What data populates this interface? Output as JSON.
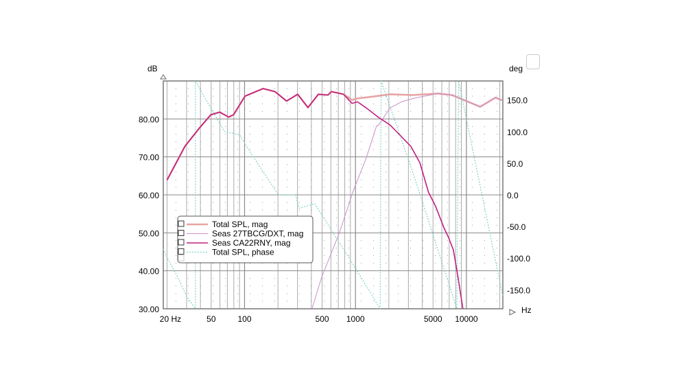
{
  "chart_data": {
    "type": "line",
    "title": "",
    "xlabel": "Hz",
    "ylabel": "dB",
    "y2label": "deg",
    "xscale": "log",
    "xlim": [
      18.5,
      21300
    ],
    "ylim": [
      30,
      90
    ],
    "y2lim": [
      -180,
      180
    ],
    "grid": true,
    "legend_placement": "left-center",
    "x_ticks": [
      {
        "value": 20,
        "label": "20 Hz"
      },
      {
        "value": 50,
        "label": "50"
      },
      {
        "value": 100,
        "label": "100"
      },
      {
        "value": 500,
        "label": "500"
      },
      {
        "value": 1000,
        "label": "1000"
      },
      {
        "value": 5000,
        "label": "5000"
      },
      {
        "value": 10000,
        "label": "10000"
      }
    ],
    "y_ticks": [
      {
        "value": 30,
        "label": "30.00"
      },
      {
        "value": 40,
        "label": "40.00"
      },
      {
        "value": 50,
        "label": "50.00"
      },
      {
        "value": 60,
        "label": "60.00"
      },
      {
        "value": 70,
        "label": "70.00"
      },
      {
        "value": 80,
        "label": "80.00"
      }
    ],
    "y2_ticks": [
      {
        "value": 150,
        "label": "150.0"
      },
      {
        "value": 100,
        "label": "100.0"
      },
      {
        "value": 50,
        "label": "50.0"
      },
      {
        "value": 0,
        "label": "0.0"
      },
      {
        "value": -50,
        "label": "-50.0"
      },
      {
        "value": -100,
        "label": "-100.0"
      },
      {
        "value": -150,
        "label": "-150.0"
      }
    ],
    "series": [
      {
        "name": "Total SPL, mag",
        "axis": "left",
        "color": "#e8a3a3",
        "style": "thick",
        "points": [
          [
            20,
            63.9
          ],
          [
            29,
            72.8
          ],
          [
            38.9,
            77.5
          ],
          [
            49.7,
            81.1
          ],
          [
            59.7,
            81.8
          ],
          [
            72,
            80.5
          ],
          [
            79.6,
            81.1
          ],
          [
            101,
            86
          ],
          [
            147,
            88
          ],
          [
            188,
            87.2
          ],
          [
            239,
            84.7
          ],
          [
            301,
            86.5
          ],
          [
            373,
            83
          ],
          [
            463,
            86.5
          ],
          [
            565,
            86.3
          ],
          [
            606,
            87.2
          ],
          [
            781,
            86.5
          ],
          [
            930,
            85
          ],
          [
            1040,
            85.4
          ],
          [
            1550,
            86
          ],
          [
            2050,
            86.5
          ],
          [
            3300,
            86.3
          ],
          [
            5550,
            86.7
          ],
          [
            7400,
            86.3
          ],
          [
            10000,
            84.7
          ],
          [
            13300,
            83.2
          ],
          [
            18300,
            85.6
          ],
          [
            21000,
            84.9
          ]
        ]
      },
      {
        "name": "Seas 27TBCG/DXT, mag",
        "axis": "left",
        "color": "#c98fc9",
        "style": "thin",
        "points": [
          [
            406,
            30
          ],
          [
            495,
            38.3
          ],
          [
            710,
            49.7
          ],
          [
            860,
            57
          ],
          [
            945,
            60.7
          ],
          [
            1250,
            69.7
          ],
          [
            1550,
            78.2
          ],
          [
            1600,
            78.2
          ],
          [
            2050,
            82.9
          ],
          [
            2600,
            84.5
          ],
          [
            3300,
            85.4
          ],
          [
            4200,
            86
          ],
          [
            5550,
            86.7
          ],
          [
            7400,
            86.3
          ],
          [
            10000,
            84.7
          ],
          [
            13300,
            83.2
          ],
          [
            18300,
            85.6
          ],
          [
            21000,
            84.9
          ]
        ]
      },
      {
        "name": "Seas CA22RNY, mag",
        "axis": "left",
        "color": "#c01f80",
        "style": "medium",
        "points": [
          [
            20,
            63.9
          ],
          [
            29,
            72.8
          ],
          [
            38.9,
            77.5
          ],
          [
            49.7,
            81.1
          ],
          [
            59.7,
            81.8
          ],
          [
            72,
            80.5
          ],
          [
            79.6,
            81.1
          ],
          [
            101,
            86
          ],
          [
            147,
            88
          ],
          [
            188,
            87.2
          ],
          [
            239,
            84.7
          ],
          [
            301,
            86.5
          ],
          [
            373,
            83
          ],
          [
            463,
            86.5
          ],
          [
            565,
            86.3
          ],
          [
            606,
            87.2
          ],
          [
            781,
            86.5
          ],
          [
            930,
            84.1
          ],
          [
            1040,
            84.5
          ],
          [
            1250,
            82.9
          ],
          [
            1600,
            80.5
          ],
          [
            2050,
            78.4
          ],
          [
            2470,
            76
          ],
          [
            3150,
            72.8
          ],
          [
            3800,
            68.5
          ],
          [
            4550,
            60.7
          ],
          [
            5270,
            57
          ],
          [
            6280,
            51.3
          ],
          [
            6900,
            48.8
          ],
          [
            7630,
            45.5
          ],
          [
            8410,
            38.3
          ],
          [
            9300,
            30
          ]
        ]
      },
      {
        "name": "Total SPL, phase",
        "axis": "right",
        "color": "#7fd3c6",
        "style": "dotted",
        "points": [
          [
            18.5,
            -85
          ],
          [
            20,
            -99
          ],
          [
            25,
            -130
          ],
          [
            30,
            -160
          ],
          [
            36,
            -180
          ],
          [
            36,
            180
          ],
          [
            45,
            150
          ],
          [
            66,
            100
          ],
          [
            80,
            97
          ],
          [
            90,
            95
          ],
          [
            120,
            60
          ],
          [
            202,
            0
          ],
          [
            288,
            0
          ],
          [
            310,
            -21
          ],
          [
            430,
            -14
          ],
          [
            1000,
            -116
          ],
          [
            1670,
            -180
          ],
          [
            1700,
            180
          ],
          [
            3300,
            35
          ],
          [
            8200,
            -180
          ],
          [
            8500,
            180
          ],
          [
            20500,
            -146
          ],
          [
            21300,
            -160
          ]
        ]
      }
    ]
  }
}
